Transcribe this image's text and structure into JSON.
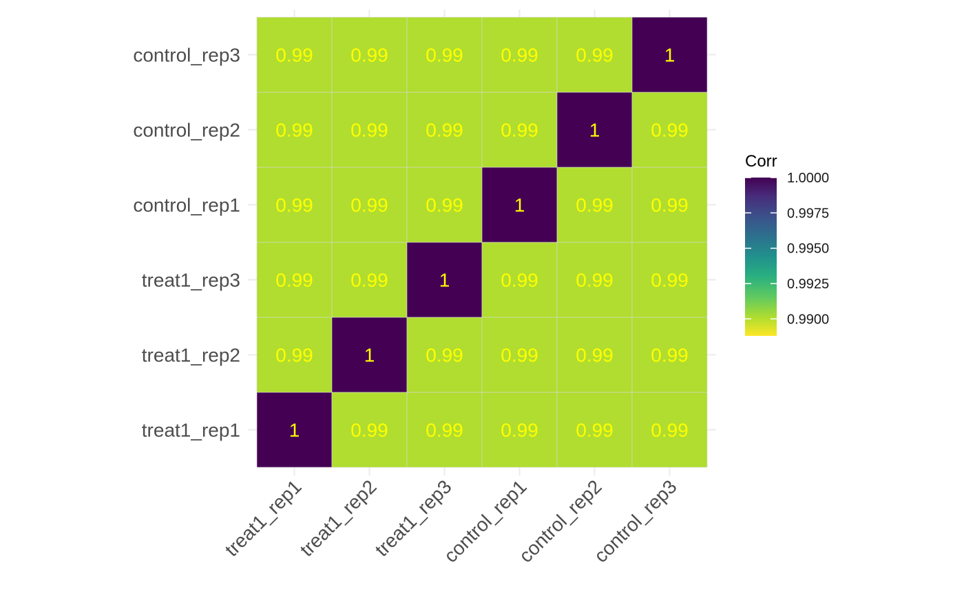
{
  "chart_data": {
    "type": "heatmap",
    "x_categories": [
      "treat1_rep1",
      "treat1_rep2",
      "treat1_rep3",
      "control_rep1",
      "control_rep2",
      "control_rep3"
    ],
    "y_categories": [
      "treat1_rep1",
      "treat1_rep2",
      "treat1_rep3",
      "control_rep1",
      "control_rep2",
      "control_rep3"
    ],
    "matrix": [
      [
        1,
        0.99,
        0.99,
        0.99,
        0.99,
        0.99
      ],
      [
        0.99,
        1,
        0.99,
        0.99,
        0.99,
        0.99
      ],
      [
        0.99,
        0.99,
        1,
        0.99,
        0.99,
        0.99
      ],
      [
        0.99,
        0.99,
        0.99,
        1,
        0.99,
        0.99
      ],
      [
        0.99,
        0.99,
        0.99,
        0.99,
        1,
        0.99
      ],
      [
        0.99,
        0.99,
        0.99,
        0.99,
        0.99,
        1
      ]
    ],
    "cell_labels": [
      [
        "1",
        "0.99",
        "0.99",
        "0.99",
        "0.99",
        "0.99"
      ],
      [
        "0.99",
        "1",
        "0.99",
        "0.99",
        "0.99",
        "0.99"
      ],
      [
        "0.99",
        "0.99",
        "1",
        "0.99",
        "0.99",
        "0.99"
      ],
      [
        "0.99",
        "0.99",
        "0.99",
        "1",
        "0.99",
        "0.99"
      ],
      [
        "0.99",
        "0.99",
        "0.99",
        "0.99",
        "1",
        "0.99"
      ],
      [
        "0.99",
        "0.99",
        "0.99",
        "0.99",
        "0.99",
        "1"
      ]
    ],
    "legend": {
      "title": "Corr",
      "placement": "right",
      "range": [
        0.9888,
        1.0
      ],
      "ticks": [
        1.0,
        0.9975,
        0.995,
        0.9925,
        0.99
      ],
      "tick_labels": [
        "1.0000",
        "0.9975",
        "0.9950",
        "0.9925",
        "0.9900"
      ]
    },
    "colors": {
      "high": "#440154",
      "low": "#b0dd2f",
      "label_text": "#ffff00",
      "grid": "#ebebeb"
    },
    "title": "",
    "xlabel": "",
    "ylabel": ""
  }
}
